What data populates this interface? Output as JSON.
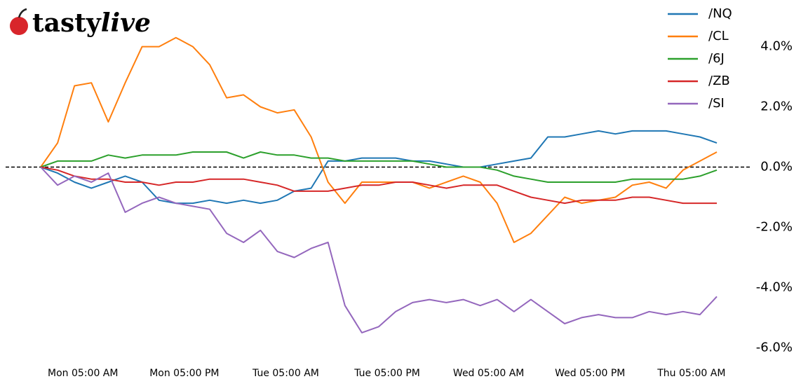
{
  "logo": [
    "tasty",
    "live"
  ],
  "chart_data": {
    "type": "line",
    "x": [
      "Mon 12:00 AM",
      "Mon 02:00 AM",
      "Mon 04:00 AM",
      "Mon 06:00 AM",
      "Mon 08:00 AM",
      "Mon 10:00 AM",
      "Mon 12:00 PM",
      "Mon 02:00 PM",
      "Mon 04:00 PM",
      "Mon 06:00 PM",
      "Mon 08:00 PM",
      "Mon 10:00 PM",
      "Tue 12:00 AM",
      "Tue 02:00 AM",
      "Tue 04:00 AM",
      "Tue 06:00 AM",
      "Tue 08:00 AM",
      "Tue 10:00 AM",
      "Tue 12:00 PM",
      "Tue 02:00 PM",
      "Tue 04:00 PM",
      "Tue 06:00 PM",
      "Tue 08:00 PM",
      "Tue 10:00 PM",
      "Wed 12:00 AM",
      "Wed 02:00 AM",
      "Wed 04:00 AM",
      "Wed 06:00 AM",
      "Wed 08:00 AM",
      "Wed 10:00 AM",
      "Wed 12:00 PM",
      "Wed 02:00 PM",
      "Wed 04:00 PM",
      "Wed 06:00 PM",
      "Wed 08:00 PM",
      "Wed 10:00 PM",
      "Thu 12:00 AM",
      "Thu 02:00 AM",
      "Thu 04:00 AM",
      "Thu 06:00 AM",
      "Thu 08:00 AM"
    ],
    "xticks": [
      "Mon 05:00 AM",
      "Mon 05:00 PM",
      "Tue 05:00 AM",
      "Tue 05:00 PM",
      "Wed 05:00 AM",
      "Wed 05:00 PM",
      "Thu 05:00 AM"
    ],
    "series": [
      {
        "name": "/NQ",
        "color": "#1f77b4",
        "values": [
          0,
          -0.2,
          -0.5,
          -0.7,
          -0.5,
          -0.3,
          -0.5,
          -1.1,
          -1.2,
          -1.2,
          -1.1,
          -1.2,
          -1.1,
          -1.2,
          -1.1,
          -0.8,
          -0.7,
          0.2,
          0.2,
          0.3,
          0.3,
          0.3,
          0.2,
          0.2,
          0.1,
          0.0,
          0.0,
          0.1,
          0.2,
          0.3,
          1.0,
          1.0,
          1.1,
          1.2,
          1.1,
          1.2,
          1.2,
          1.2,
          1.1,
          1.0,
          0.8
        ]
      },
      {
        "name": "/CL",
        "color": "#ff7f0e",
        "values": [
          0,
          0.8,
          2.7,
          2.8,
          1.5,
          2.8,
          4.0,
          4.0,
          4.3,
          4.0,
          3.4,
          2.3,
          2.4,
          2.0,
          1.8,
          1.9,
          1.0,
          -0.5,
          -1.2,
          -0.5,
          -0.5,
          -0.5,
          -0.5,
          -0.7,
          -0.5,
          -0.3,
          -0.5,
          -1.2,
          -2.5,
          -2.2,
          -1.6,
          -1.0,
          -1.2,
          -1.1,
          -1.0,
          -0.6,
          -0.5,
          -0.7,
          -0.1,
          0.2,
          0.5
        ]
      },
      {
        "name": "/6J",
        "color": "#2ca02c",
        "values": [
          0,
          0.2,
          0.2,
          0.2,
          0.4,
          0.3,
          0.4,
          0.4,
          0.4,
          0.5,
          0.5,
          0.5,
          0.3,
          0.5,
          0.4,
          0.4,
          0.3,
          0.3,
          0.2,
          0.2,
          0.2,
          0.2,
          0.2,
          0.1,
          0.0,
          0.0,
          0.0,
          -0.1,
          -0.3,
          -0.4,
          -0.5,
          -0.5,
          -0.5,
          -0.5,
          -0.5,
          -0.4,
          -0.4,
          -0.4,
          -0.4,
          -0.3,
          -0.1
        ]
      },
      {
        "name": "/ZB",
        "color": "#d62728",
        "values": [
          0,
          -0.1,
          -0.3,
          -0.4,
          -0.4,
          -0.5,
          -0.5,
          -0.6,
          -0.5,
          -0.5,
          -0.4,
          -0.4,
          -0.4,
          -0.5,
          -0.6,
          -0.8,
          -0.8,
          -0.8,
          -0.7,
          -0.6,
          -0.6,
          -0.5,
          -0.5,
          -0.6,
          -0.7,
          -0.6,
          -0.6,
          -0.6,
          -0.8,
          -1.0,
          -1.1,
          -1.2,
          -1.1,
          -1.1,
          -1.1,
          -1.0,
          -1.0,
          -1.1,
          -1.2,
          -1.2,
          -1.2
        ]
      },
      {
        "name": "/SI",
        "color": "#9467bd",
        "values": [
          0,
          -0.6,
          -0.3,
          -0.5,
          -0.2,
          -1.5,
          -1.2,
          -1.0,
          -1.2,
          -1.3,
          -1.4,
          -2.2,
          -2.5,
          -2.1,
          -2.8,
          -3.0,
          -2.7,
          -2.5,
          -4.6,
          -5.5,
          -5.3,
          -4.8,
          -4.5,
          -4.4,
          -4.5,
          -4.4,
          -4.6,
          -4.4,
          -4.8,
          -4.4,
          -4.8,
          -5.2,
          -5.0,
          -4.9,
          -5.0,
          -5.0,
          -4.8,
          -4.9,
          -4.8,
          -4.9,
          -4.3
        ]
      }
    ],
    "ylim": [
      -6.2,
      5.2
    ],
    "yticks": [
      {
        "value": 4,
        "label": "4.0%"
      },
      {
        "value": 2,
        "label": "2.0%"
      },
      {
        "value": 0,
        "label": "0.0%"
      },
      {
        "value": -2,
        "label": "-2.0%"
      },
      {
        "value": -4,
        "label": "-4.0%"
      },
      {
        "value": -6,
        "label": "-6.0%"
      }
    ],
    "hline": 0,
    "legend": "upper right"
  }
}
